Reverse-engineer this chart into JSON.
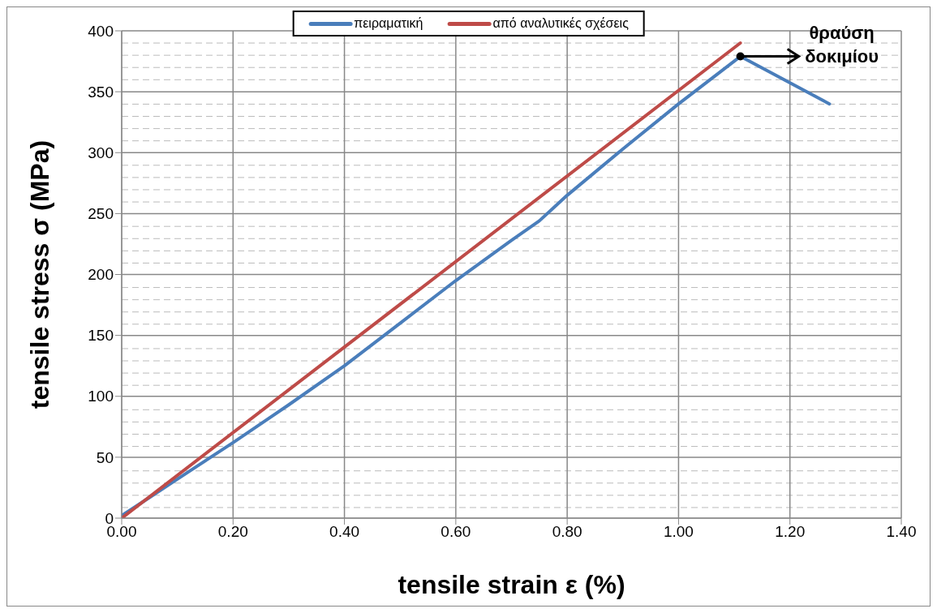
{
  "chart_data": {
    "type": "line",
    "xlabel": "tensile strain ε (%)",
    "ylabel": "tensile stress σ (MPa)",
    "series": [
      {
        "name": "πειραματική",
        "color": "#4a7ebb",
        "x": [
          0,
          0.05,
          0.1,
          0.2,
          0.3,
          0.4,
          0.5,
          0.6,
          0.7,
          0.75,
          0.8,
          0.9,
          1.0,
          1.111,
          1.271
        ],
        "values": [
          2,
          17,
          32,
          62,
          93,
          125,
          160,
          195,
          228,
          244,
          265,
          303,
          340,
          379,
          340
        ]
      },
      {
        "name": "από αναλυτικές σχέσεις",
        "color": "#be4b48",
        "x": [
          0,
          1.111
        ],
        "values": [
          0,
          390
        ]
      }
    ],
    "xlim": [
      0,
      1.4
    ],
    "xticks": [
      {
        "value": 0,
        "label": "0.00"
      },
      {
        "value": 0.2,
        "label": "0.20"
      },
      {
        "value": 0.4,
        "label": "0.40"
      },
      {
        "value": 0.6,
        "label": "0.60"
      },
      {
        "value": 0.8,
        "label": "0.80"
      },
      {
        "value": 1.0,
        "label": "1.00"
      },
      {
        "value": 1.2,
        "label": "1.20"
      },
      {
        "value": 1.4,
        "label": "1.40"
      }
    ],
    "ylim": [
      0,
      400
    ],
    "yticks": [
      0,
      50,
      100,
      150,
      200,
      250,
      300,
      350,
      400
    ],
    "grid": true,
    "legend": "top",
    "marker": "none",
    "line_style": "solid",
    "annotations": [
      {
        "text": "θραύση δοκιμίου",
        "x": 1.111,
        "y": 379
      }
    ]
  }
}
